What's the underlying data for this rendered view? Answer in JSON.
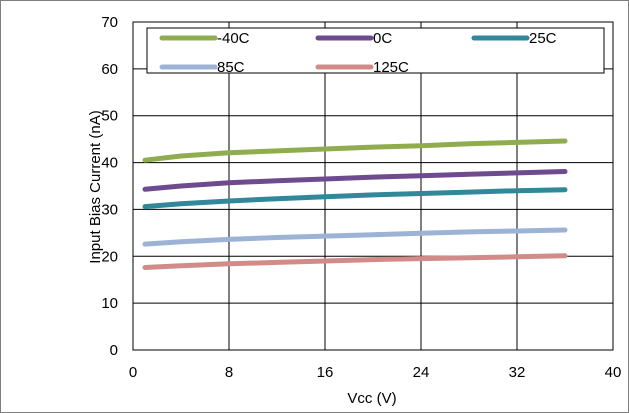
{
  "chart_data": {
    "type": "line",
    "title": "",
    "xlabel": "Vcc (V)",
    "ylabel": "Input Bias Current (nA)",
    "xlim": [
      0,
      40
    ],
    "ylim": [
      0,
      70
    ],
    "xticks": [
      0,
      8,
      16,
      24,
      32,
      40
    ],
    "yticks": [
      0,
      10,
      20,
      30,
      40,
      50,
      60,
      70
    ],
    "grid": true,
    "legend_position": "top",
    "x": [
      1,
      4,
      8,
      12,
      16,
      20,
      24,
      28,
      32,
      36
    ],
    "series": [
      {
        "name": "-40C",
        "color": "#8fad4f",
        "values": [
          40.5,
          41.4,
          42.1,
          42.5,
          42.9,
          43.3,
          43.6,
          44.0,
          44.3,
          44.6
        ]
      },
      {
        "name": "0C",
        "color": "#6e4a8e",
        "values": [
          34.3,
          35.0,
          35.7,
          36.1,
          36.5,
          36.9,
          37.2,
          37.5,
          37.8,
          38.1
        ]
      },
      {
        "name": "25C",
        "color": "#31889b",
        "values": [
          30.6,
          31.2,
          31.8,
          32.3,
          32.7,
          33.1,
          33.4,
          33.7,
          34.0,
          34.2
        ]
      },
      {
        "name": "85C",
        "color": "#9db3d6",
        "values": [
          22.6,
          23.1,
          23.6,
          24.0,
          24.3,
          24.6,
          24.9,
          25.2,
          25.4,
          25.6
        ]
      },
      {
        "name": "125C",
        "color": "#d18b88",
        "values": [
          17.6,
          18.0,
          18.4,
          18.7,
          19.0,
          19.3,
          19.5,
          19.7,
          19.9,
          20.1
        ]
      }
    ]
  }
}
